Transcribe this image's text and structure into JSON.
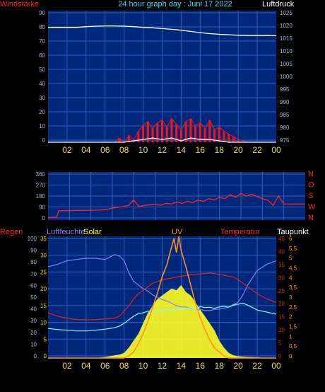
{
  "title": "24 hour graph day : Juni 17 2022",
  "colors": {
    "background": "#000000",
    "plot_bg": "#00277a",
    "grid": "#2a5fc4",
    "tick_left": "#aab6d6",
    "tick_yellow": "#e8e040",
    "wind": "#ff1010",
    "pressure": "#ffffff",
    "gust": "#ffffff",
    "direction": "#ff2020",
    "humidity": "#8080ff",
    "dewpoint": "#80ffff",
    "solar": "#ffff20",
    "uv": "#ff9020",
    "temperature": "#e02020"
  },
  "chart_data": [
    {
      "type": "line",
      "title": "24 hour graph day : Juni 17 2022",
      "left_label": "Windstärke",
      "right_label": "Luftdruck",
      "x_ticks": [
        "02",
        "04",
        "06",
        "08",
        "10",
        "12",
        "14",
        "16",
        "18",
        "20",
        "22",
        "00"
      ],
      "left_ticks": [
        "0",
        "10",
        "20",
        "30",
        "40",
        "50",
        "60",
        "70",
        "80",
        "90"
      ],
      "right_ticks": [
        "975",
        "980",
        "985",
        "990",
        "995",
        "1000",
        "1005",
        "1010",
        "1015",
        "1020",
        "1025"
      ],
      "left_range": [
        0,
        95
      ],
      "right_range": [
        974,
        1029
      ],
      "series": [
        {
          "key": "pressure",
          "axis": "right",
          "hours": [
            0,
            1,
            2,
            3,
            4,
            5,
            6,
            7,
            8,
            9,
            10,
            11,
            12,
            13,
            14,
            15,
            16,
            17,
            18,
            19,
            20,
            21,
            22,
            23,
            24
          ],
          "values": [
            1022,
            1022,
            1022,
            1022,
            1022.3,
            1022.5,
            1022.6,
            1022.6,
            1022.5,
            1022.3,
            1022,
            1021.8,
            1021.5,
            1021.2,
            1020.8,
            1020.3,
            1019.8,
            1019.4,
            1019.1,
            1018.9,
            1018.7,
            1018.6,
            1018.6,
            1018.6,
            1018.5
          ]
        },
        {
          "key": "wind",
          "axis": "left",
          "hours": [
            0,
            2,
            4,
            6,
            7,
            7.5,
            8,
            8.5,
            9,
            9.5,
            10,
            10.5,
            11,
            11.5,
            12,
            12.5,
            13,
            13.5,
            14,
            14.5,
            15,
            15.5,
            16,
            16.5,
            17,
            17.5,
            18,
            18.5,
            19,
            19.5,
            20,
            21,
            22,
            23,
            24
          ],
          "values": [
            0,
            0,
            0,
            0,
            0,
            3,
            0,
            5,
            2,
            8,
            12,
            15,
            10,
            14,
            16,
            11,
            17,
            13,
            9,
            15,
            17,
            12,
            14,
            10,
            16,
            9,
            11,
            8,
            6,
            4,
            2,
            0,
            0,
            0,
            0
          ]
        },
        {
          "key": "gust",
          "axis": "left",
          "hours": [
            0,
            8,
            9,
            10,
            11,
            12,
            13,
            14,
            15,
            16,
            17,
            18,
            19,
            20,
            24
          ],
          "values": [
            0,
            0,
            1,
            2,
            3,
            2,
            3,
            1,
            3,
            2,
            2,
            1,
            0,
            0,
            0
          ]
        }
      ]
    },
    {
      "type": "line",
      "title": "",
      "x_ticks": [],
      "left_ticks": [
        "0",
        "90",
        "180",
        "270",
        "360"
      ],
      "right_ticks": [
        "N",
        "W",
        "S",
        "O",
        "N"
      ],
      "left_range": [
        0,
        360
      ],
      "series": [
        {
          "key": "direction",
          "hours": [
            0,
            0.8,
            1,
            5,
            5.5,
            6,
            6.5,
            7,
            7.5,
            8,
            8.5,
            9,
            9.5,
            10,
            10.5,
            11,
            11.5,
            12,
            12.5,
            13,
            13.5,
            14,
            14.5,
            15,
            15.5,
            16,
            16.5,
            17,
            17.5,
            18,
            18.5,
            19,
            19.5,
            20,
            20.5,
            21,
            21.5,
            22,
            23,
            24
          ],
          "values": [
            20,
            20,
            70,
            75,
            80,
            90,
            95,
            100,
            110,
            150,
            100,
            110,
            115,
            120,
            110,
            125,
            120,
            135,
            125,
            140,
            130,
            150,
            140,
            160,
            150,
            170,
            160,
            190,
            170,
            200,
            180,
            195,
            175,
            160,
            150,
            110,
            180,
            120,
            120,
            120
          ]
        }
      ]
    },
    {
      "type": "line",
      "title": "",
      "x_ticks": [
        "02",
        "04",
        "06",
        "08",
        "10",
        "12",
        "14",
        "16",
        "18",
        "20",
        "22",
        "00"
      ],
      "labels": {
        "regen": "Regen",
        "humidity": "Luftfeuchte",
        "solar": "Solar",
        "uv": "UV",
        "temperature": "Temperatur",
        "dewpoint": "Taupunkt"
      },
      "ticks_left1": [
        "0",
        "10",
        "20",
        "30",
        "40",
        "50",
        "60",
        "70",
        "80",
        "90",
        "100"
      ],
      "ticks_left2": [
        "0",
        "5",
        "10",
        "15",
        "20",
        "25",
        "30",
        "35"
      ],
      "ticks_right1": [
        "0",
        "5",
        "10",
        "15",
        "20",
        "25",
        "30",
        "35",
        "40",
        "45"
      ],
      "ticks_right2": [
        "0",
        "0,5",
        "1",
        "1,5",
        "2",
        "2,5",
        "3",
        "3,5",
        "4",
        "4,5",
        "5",
        "5,5",
        "6"
      ],
      "series": [
        {
          "key": "humidity",
          "range": [
            0,
            100
          ],
          "hours": [
            0,
            1,
            2,
            3,
            4,
            5,
            6,
            7,
            7.5,
            8,
            8.5,
            9,
            9.5,
            10,
            10.5,
            11,
            11.5,
            12,
            12.5,
            13,
            13.5,
            14,
            14.5,
            15,
            15.5,
            16,
            16.5,
            17,
            17.5,
            18,
            18.5,
            19,
            19.5,
            20,
            20.5,
            21,
            21.5,
            22,
            23,
            24
          ],
          "values": [
            75,
            77,
            80,
            81,
            82,
            82,
            81,
            85,
            84,
            80,
            70,
            63,
            60,
            57,
            55,
            52,
            50,
            48,
            47,
            45,
            43,
            42,
            42,
            41,
            40,
            40,
            39,
            39,
            40,
            40,
            41,
            42,
            44,
            46,
            52,
            60,
            66,
            72,
            77,
            80
          ]
        },
        {
          "key": "temperature",
          "range": [
            0,
            35
          ],
          "hours": [
            0,
            1,
            2,
            3,
            4,
            5,
            6,
            7,
            7.5,
            8,
            8.5,
            9,
            9.5,
            10,
            10.5,
            11,
            11.5,
            12,
            12.5,
            13,
            13.5,
            14,
            14.5,
            15,
            15.5,
            16,
            16.5,
            17,
            17.5,
            18,
            18.5,
            19,
            19.5,
            20,
            20.5,
            21,
            21.5,
            22,
            23,
            24
          ],
          "values": [
            13,
            12,
            11.5,
            11,
            11,
            11,
            11.3,
            11.5,
            12,
            13.5,
            15,
            17,
            18.5,
            19.5,
            20.5,
            21.5,
            22,
            22.5,
            22.8,
            23,
            23.3,
            23.5,
            23.7,
            24,
            24,
            24.2,
            24.3,
            24.5,
            24.3,
            24,
            23.8,
            23.5,
            23.3,
            22.5,
            21.5,
            20.5,
            19.5,
            18.5,
            17,
            16
          ]
        },
        {
          "key": "dewpoint",
          "range": [
            0,
            35
          ],
          "hours": [
            0,
            1,
            2,
            3,
            4,
            5,
            6,
            7,
            7.5,
            8,
            8.5,
            9,
            9.5,
            10,
            10.5,
            11,
            11.5,
            12,
            12.5,
            13,
            13.5,
            14,
            14.5,
            15,
            15.5,
            16,
            16.5,
            17,
            17.5,
            18,
            18.5,
            19,
            19.5,
            20,
            20.5,
            21,
            21.5,
            22,
            23,
            24
          ],
          "values": [
            8.5,
            8.2,
            8,
            7.8,
            7.8,
            8,
            8.3,
            8.7,
            9.2,
            10,
            11,
            12,
            12.8,
            13,
            13.5,
            13.3,
            13.8,
            13.5,
            14,
            13.6,
            14.3,
            13.8,
            14.2,
            14.5,
            14,
            14.8,
            14.5,
            14.6,
            14.3,
            14.7,
            14.9,
            14.6,
            15.2,
            15.5,
            15.8,
            15.2,
            14.5,
            13.8,
            13.2,
            12.6
          ]
        },
        {
          "key": "solar",
          "range": [
            0,
            35
          ],
          "hours": [
            0,
            5,
            6,
            6.5,
            7,
            7.5,
            8,
            8.5,
            9,
            9.5,
            10,
            10.5,
            11,
            11.5,
            12,
            12.5,
            13,
            13.5,
            14,
            14.5,
            15,
            15.5,
            16,
            16.5,
            17,
            17.5,
            18,
            18.5,
            19,
            19.5,
            20,
            21,
            22,
            23,
            24
          ],
          "values": [
            0,
            0,
            0.3,
            0.5,
            0.8,
            1,
            1.5,
            3,
            5,
            7,
            10,
            13,
            15,
            17,
            18,
            19,
            20,
            19.5,
            21,
            19,
            18,
            16,
            14,
            12,
            10,
            8,
            5,
            3,
            1.5,
            0.8,
            0.5,
            0.3,
            0.2,
            0,
            0
          ]
        },
        {
          "key": "uv",
          "range": [
            0,
            6
          ],
          "hours": [
            0,
            8,
            8.5,
            9,
            9.5,
            10,
            10.5,
            11,
            11.5,
            12,
            12.5,
            13,
            13.25,
            13.5,
            13.75,
            14,
            14.5,
            15,
            15.5,
            16,
            16.5,
            17,
            17.5,
            18,
            18.5,
            19,
            19.5,
            20,
            24
          ],
          "values": [
            0,
            0,
            0.1,
            0.3,
            0.7,
            1.2,
            1.8,
            2.5,
            3.2,
            4,
            4.6,
            5.5,
            5.9,
            5.2,
            6,
            5.3,
            4.5,
            3.6,
            2.7,
            2,
            1.4,
            0.9,
            0.5,
            0.3,
            0.1,
            0,
            0,
            0,
            0
          ]
        }
      ]
    }
  ]
}
